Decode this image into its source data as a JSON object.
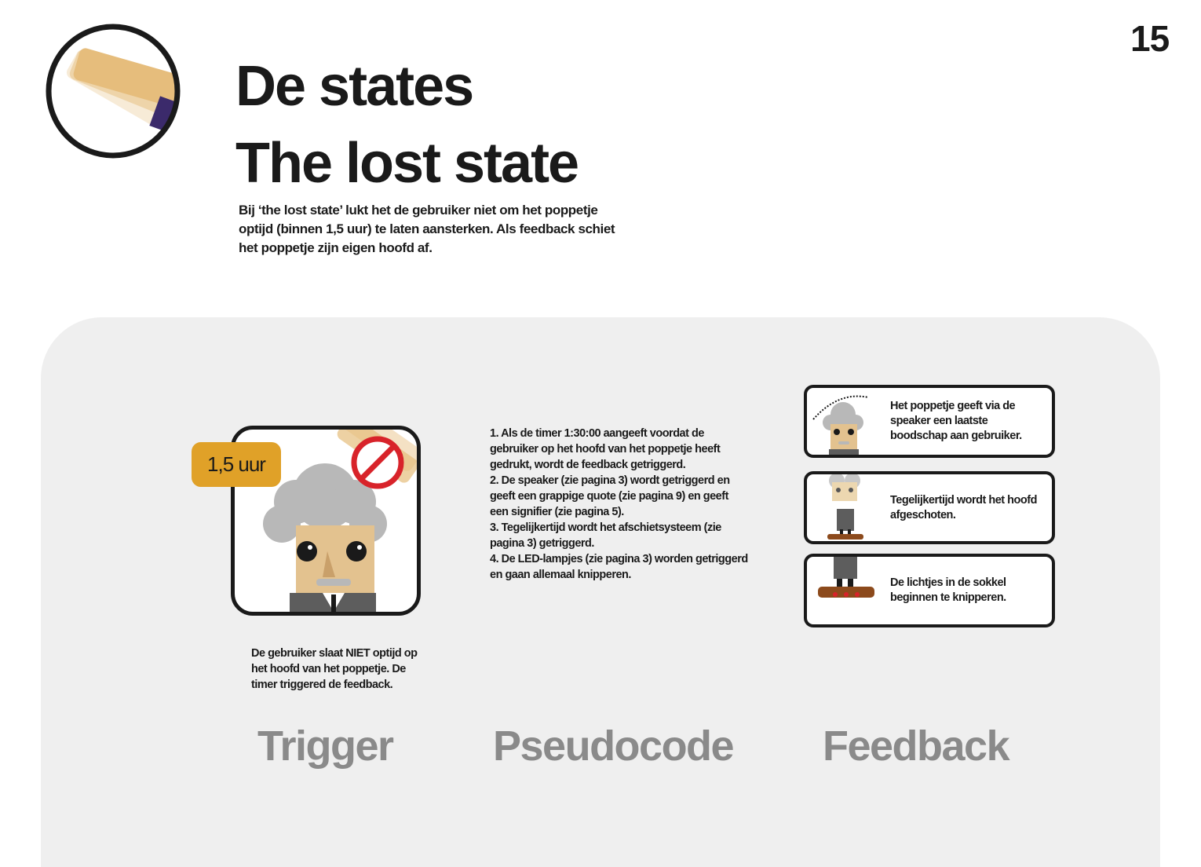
{
  "page": {
    "number": "15"
  },
  "header": {
    "title_line1": "De states",
    "title_line2": "The lost state",
    "intro": "Bij ‘the lost state’ lukt het de gebruiker niet om het poppetje optijd (binnen 1,5 uur) te laten aansterken. Als feedback schiet het poppetje zijn eigen hoofd af."
  },
  "trigger": {
    "badge": "1,5 uur",
    "description": "De gebruiker slaat NIET optijd op het hoofd van het poppetje. De timer triggered de feedback.",
    "label": "Trigger"
  },
  "pseudocode": {
    "steps": [
      "1. Als de timer 1:30:00 aangeeft voordat de gebruiker op het hoofd van het poppetje heeft gedrukt, wordt de feedback getriggerd.",
      "2. De speaker (zie pagina 3) wordt getriggerd en geeft een grappige quote (zie pagina 9) en geeft een signifier (zie pagina 5).",
      "3. Tegelijkertijd wordt het afschietsysteem (zie pagina 3) getriggerd.",
      "4. De LED-lampjes (zie pagina 3) worden getriggerd en gaan allemaal knipperen."
    ],
    "label": "Pseudocode"
  },
  "feedback": {
    "steps": [
      "Het poppetje geeft via de speaker een laatste boodschap aan gebruiker.",
      "Tegelijkertijd wordt het hoofd afgeschoten.",
      "De lichtjes in de sokkel beginnen te knipperen."
    ],
    "label": "Feedback"
  },
  "colors": {
    "panel": "#efefef",
    "accent": "#e0a128",
    "text": "#1a1a1a",
    "label": "#8a8a8a",
    "hand": "#e6bd7c",
    "hair": "#b8b8b8",
    "face": "#e3c28f",
    "suit": "#5d5d5d",
    "base": "#8c4a1c",
    "forbidden": "#d8232a"
  }
}
